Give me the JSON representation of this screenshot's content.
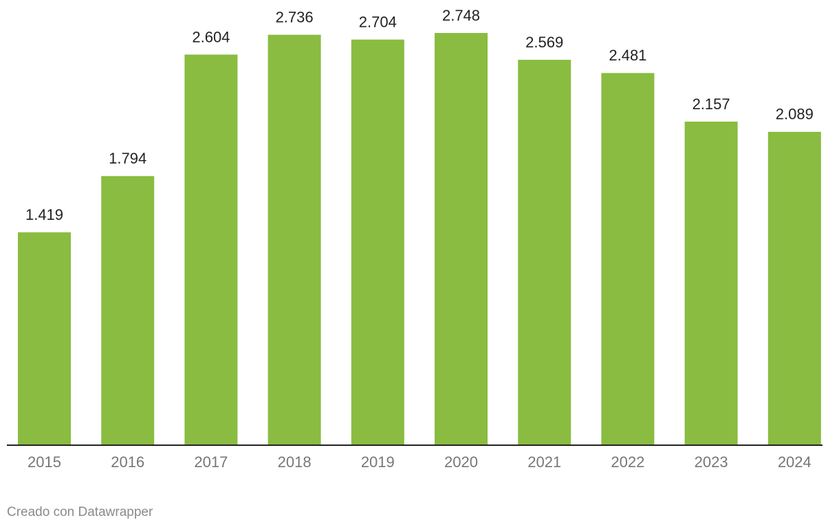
{
  "chart_data": {
    "type": "bar",
    "categories": [
      "2015",
      "2016",
      "2017",
      "2018",
      "2019",
      "2020",
      "2021",
      "2022",
      "2023",
      "2024"
    ],
    "values": [
      1419,
      1794,
      2604,
      2736,
      2704,
      2748,
      2569,
      2481,
      2157,
      2089
    ],
    "value_labels": [
      "1.419",
      "1.794",
      "2.604",
      "2.736",
      "2.704",
      "2.748",
      "2.569",
      "2.481",
      "2.157",
      "2.089"
    ],
    "color": "#89bc40"
  },
  "footer": "Creado con Datawrapper"
}
